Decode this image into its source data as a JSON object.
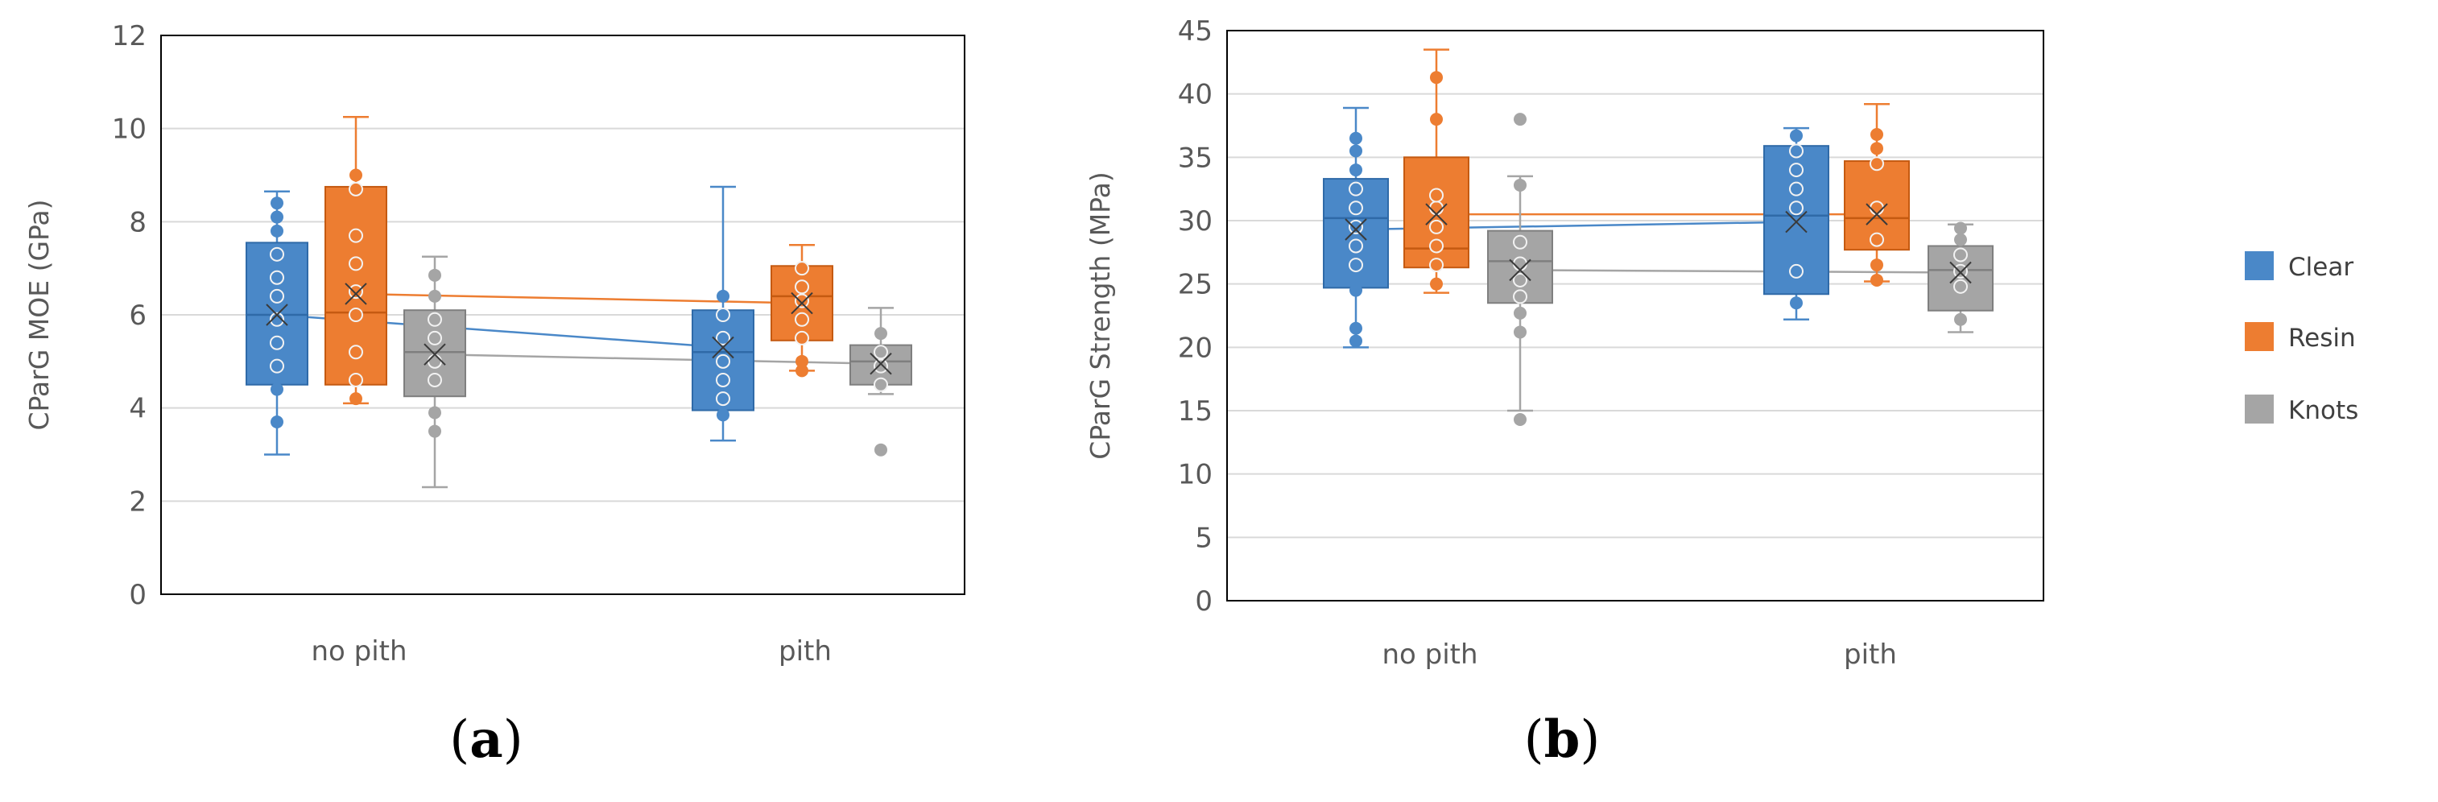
{
  "colors": {
    "Clear": "#4a88c8",
    "Resin": "#ed7d31",
    "Knots": "#a5a5a5",
    "grid": "#d9d9d9",
    "axis": "#000000"
  },
  "legend": [
    "Clear",
    "Resin",
    "Knots"
  ],
  "panel_labels": [
    {
      "open": "(",
      "letter": "a",
      "close": ")"
    },
    {
      "open": "(",
      "letter": "b",
      "close": ")"
    }
  ],
  "chart_data": [
    {
      "type": "box",
      "panel": "a",
      "title": "",
      "xlabel": "",
      "ylabel": "CParG MOE (GPa)",
      "ylim": [
        0,
        12
      ],
      "ytick_step": 2,
      "ytick_labels": [
        "0",
        "2",
        "4",
        "6",
        "8",
        "10",
        "12"
      ],
      "categories": [
        "no pith",
        "pith"
      ],
      "grid": true,
      "series": [
        {
          "name": "Clear",
          "boxes": [
            {
              "whisker_low": 3.0,
              "q1": 4.5,
              "median": 6.0,
              "q3": 7.55,
              "whisker_high": 8.65,
              "mean": 6.0,
              "points": [
                3.7,
                4.4,
                4.9,
                5.4,
                5.9,
                6.4,
                6.8,
                7.3,
                7.8,
                8.1,
                8.4
              ]
            },
            {
              "whisker_low": 3.3,
              "q1": 3.95,
              "median": 5.2,
              "q3": 6.1,
              "whisker_high": 8.75,
              "mean": 5.3,
              "points": [
                3.85,
                4.2,
                4.6,
                5.0,
                5.5,
                6.0,
                6.4
              ]
            }
          ]
        },
        {
          "name": "Resin",
          "boxes": [
            {
              "whisker_low": 4.1,
              "q1": 4.5,
              "median": 6.05,
              "q3": 8.75,
              "whisker_high": 10.25,
              "mean": 6.45,
              "points": [
                4.2,
                4.6,
                5.2,
                6.0,
                6.5,
                7.1,
                7.7,
                8.7,
                9.0
              ]
            },
            {
              "whisker_low": 4.8,
              "q1": 5.45,
              "median": 6.4,
              "q3": 7.05,
              "whisker_high": 7.5,
              "mean": 6.25,
              "points": [
                4.8,
                5.0,
                5.5,
                5.9,
                6.3,
                6.6,
                7.0
              ]
            }
          ]
        },
        {
          "name": "Knots",
          "boxes": [
            {
              "whisker_low": 2.3,
              "q1": 4.25,
              "median": 5.2,
              "q3": 6.1,
              "whisker_high": 7.25,
              "mean": 5.15,
              "points": [
                3.5,
                3.9,
                4.6,
                5.0,
                5.5,
                5.9,
                6.4,
                6.85
              ]
            },
            {
              "whisker_low": 4.3,
              "q1": 4.5,
              "median": 5.0,
              "q3": 5.35,
              "whisker_high": 6.15,
              "mean": 4.95,
              "points": [
                3.1,
                4.5,
                4.9,
                5.2,
                5.6
              ]
            }
          ]
        }
      ]
    },
    {
      "type": "box",
      "panel": "b",
      "title": "",
      "xlabel": "",
      "ylabel": "CParG Strength (MPa)",
      "ylim": [
        0,
        45
      ],
      "ytick_step": 5,
      "ytick_labels": [
        "0",
        "5",
        "10",
        "15",
        "20",
        "25",
        "30",
        "35",
        "40",
        "45"
      ],
      "categories": [
        "no pith",
        "pith"
      ],
      "grid": true,
      "series": [
        {
          "name": "Clear",
          "boxes": [
            {
              "whisker_low": 20.0,
              "q1": 24.7,
              "median": 30.2,
              "q3": 33.3,
              "whisker_high": 38.9,
              "mean": 29.3,
              "points": [
                20.5,
                21.5,
                24.5,
                26.5,
                28.0,
                29.5,
                31.0,
                32.5,
                34.0,
                35.5,
                36.5
              ]
            },
            {
              "whisker_low": 22.2,
              "q1": 24.2,
              "median": 30.4,
              "q3": 35.9,
              "whisker_high": 37.3,
              "mean": 29.9,
              "points": [
                23.5,
                26.0,
                31.0,
                32.5,
                34.0,
                35.5,
                36.7
              ]
            }
          ]
        },
        {
          "name": "Resin",
          "boxes": [
            {
              "whisker_low": 24.3,
              "q1": 26.3,
              "median": 27.8,
              "q3": 35.0,
              "whisker_high": 43.5,
              "mean": 30.5,
              "points": [
                25.0,
                26.5,
                28.0,
                29.5,
                31.0,
                32.0,
                38.0,
                41.3
              ]
            },
            {
              "whisker_low": 25.2,
              "q1": 27.7,
              "median": 30.2,
              "q3": 34.7,
              "whisker_high": 39.2,
              "mean": 30.5,
              "points": [
                25.3,
                26.5,
                28.5,
                31.0,
                34.5,
                35.7,
                36.8
              ]
            }
          ]
        },
        {
          "name": "Knots",
          "boxes": [
            {
              "whisker_low": 15.0,
              "q1": 23.5,
              "median": 26.8,
              "q3": 29.2,
              "whisker_high": 33.5,
              "mean": 26.1,
              "points": [
                14.3,
                21.2,
                22.7,
                24.0,
                25.3,
                26.6,
                28.3,
                32.8,
                38.0
              ]
            },
            {
              "whisker_low": 21.2,
              "q1": 22.9,
              "median": 26.1,
              "q3": 28.0,
              "whisker_high": 29.7,
              "mean": 25.9,
              "points": [
                22.2,
                24.8,
                26.0,
                27.3,
                28.5,
                29.4
              ]
            }
          ]
        }
      ]
    }
  ]
}
